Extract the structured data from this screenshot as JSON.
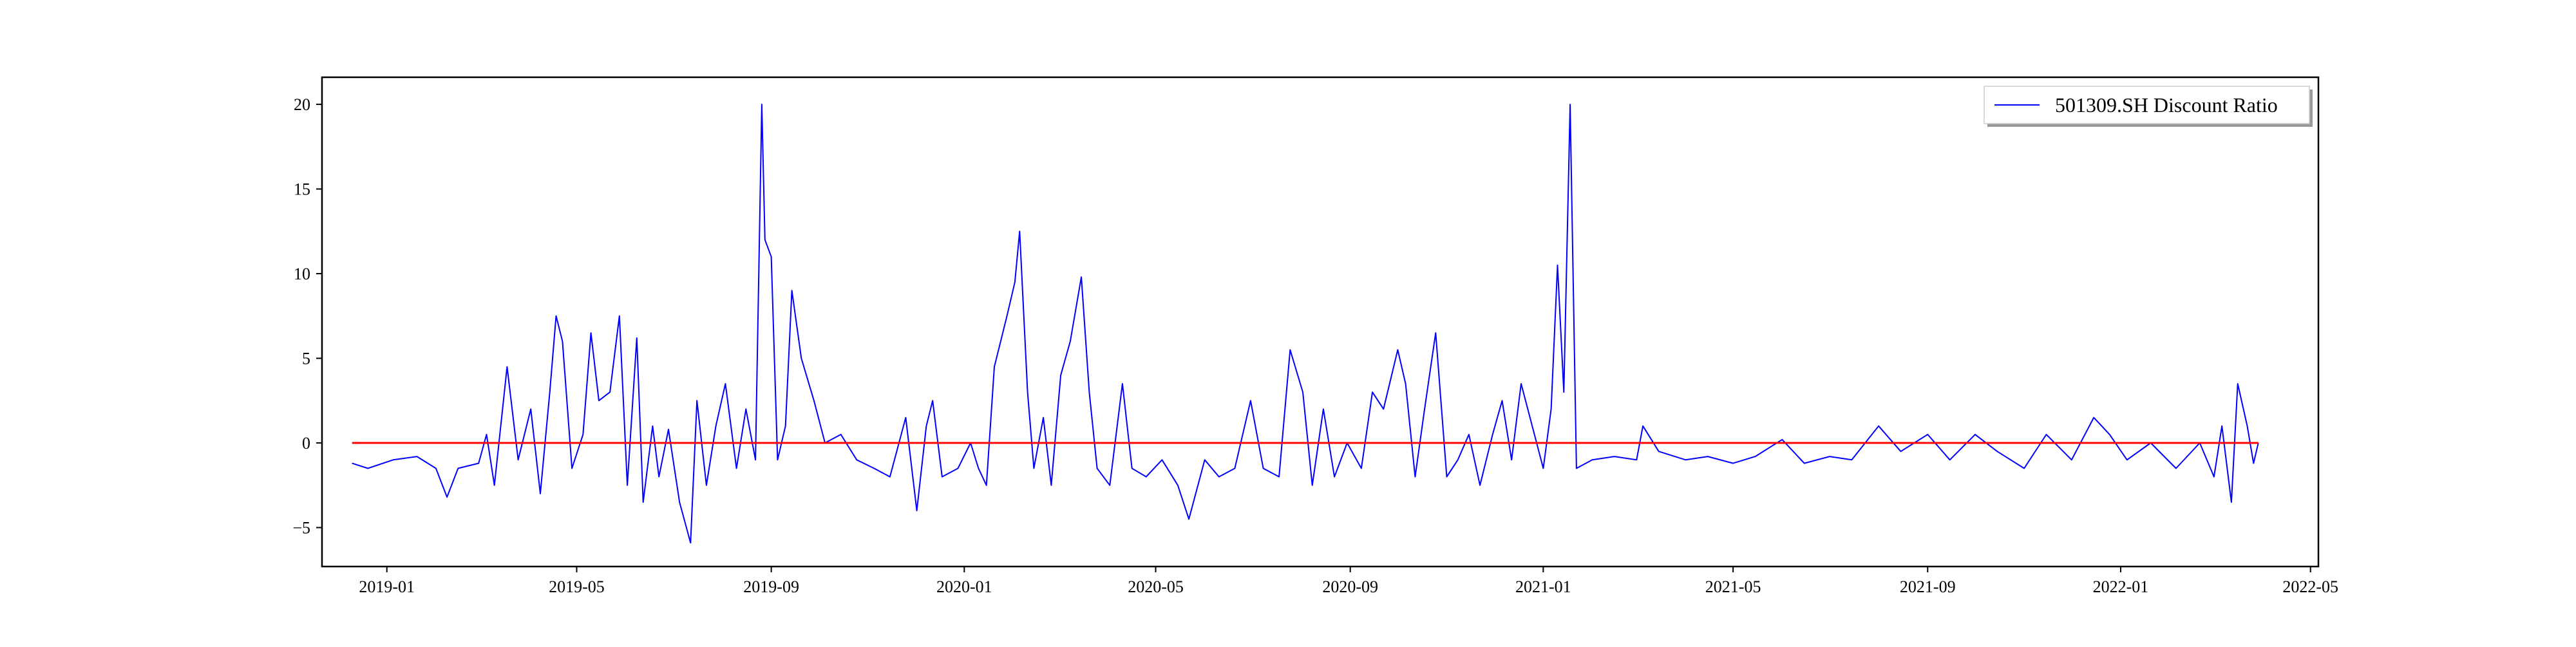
{
  "chart_data": {
    "type": "line",
    "title": "",
    "xlabel": "",
    "ylabel": "",
    "x_range": [
      "2018-11-21",
      "2022-05-06"
    ],
    "ylim": [
      -7.3,
      21.6
    ],
    "x_ticks": [
      "2019-01",
      "2019-05",
      "2019-09",
      "2020-01",
      "2020-05",
      "2020-09",
      "2021-01",
      "2021-05",
      "2021-09",
      "2022-01",
      "2022-05"
    ],
    "y_ticks": [
      "20",
      "15",
      "10",
      "5",
      "0",
      "−5"
    ],
    "y_tick_values": [
      20,
      15,
      10,
      5,
      0,
      -5
    ],
    "grid": false,
    "legend": {
      "placement": "top-right",
      "entries": [
        "501309.SH Discount Ratio"
      ]
    },
    "series": [
      {
        "name": "501309.SH Discount Ratio",
        "color": "#0000ff",
        "points": [
          [
            "2018-12-10",
            -1.2
          ],
          [
            "2018-12-20",
            -1.5
          ],
          [
            "2019-01-05",
            -1.0
          ],
          [
            "2019-01-20",
            -0.8
          ],
          [
            "2019-02-01",
            -1.5
          ],
          [
            "2019-02-08",
            -3.2
          ],
          [
            "2019-02-15",
            -1.5
          ],
          [
            "2019-02-28",
            -1.2
          ],
          [
            "2019-03-05",
            0.5
          ],
          [
            "2019-03-10",
            -2.5
          ],
          [
            "2019-03-18",
            4.5
          ],
          [
            "2019-03-25",
            -1.0
          ],
          [
            "2019-04-02",
            2.0
          ],
          [
            "2019-04-08",
            -3.0
          ],
          [
            "2019-04-14",
            3.0
          ],
          [
            "2019-04-18",
            7.5
          ],
          [
            "2019-04-22",
            6.0
          ],
          [
            "2019-04-28",
            -1.5
          ],
          [
            "2019-05-05",
            0.5
          ],
          [
            "2019-05-10",
            6.5
          ],
          [
            "2019-05-15",
            2.5
          ],
          [
            "2019-05-22",
            3.0
          ],
          [
            "2019-05-28",
            7.5
          ],
          [
            "2019-06-02",
            -2.5
          ],
          [
            "2019-06-08",
            6.2
          ],
          [
            "2019-06-12",
            -3.5
          ],
          [
            "2019-06-18",
            1.0
          ],
          [
            "2019-06-22",
            -2.0
          ],
          [
            "2019-06-28",
            0.8
          ],
          [
            "2019-07-05",
            -3.5
          ],
          [
            "2019-07-12",
            -5.9
          ],
          [
            "2019-07-16",
            2.5
          ],
          [
            "2019-07-22",
            -2.5
          ],
          [
            "2019-07-28",
            1.0
          ],
          [
            "2019-08-03",
            3.5
          ],
          [
            "2019-08-10",
            -1.5
          ],
          [
            "2019-08-16",
            2.0
          ],
          [
            "2019-08-22",
            -1.0
          ],
          [
            "2019-08-26",
            20.0
          ],
          [
            "2019-08-28",
            12.0
          ],
          [
            "2019-09-01",
            11.0
          ],
          [
            "2019-09-05",
            -1.0
          ],
          [
            "2019-09-10",
            1.0
          ],
          [
            "2019-09-14",
            9.0
          ],
          [
            "2019-09-20",
            5.0
          ],
          [
            "2019-09-28",
            2.5
          ],
          [
            "2019-10-05",
            0.0
          ],
          [
            "2019-10-15",
            0.5
          ],
          [
            "2019-10-25",
            -1.0
          ],
          [
            "2019-11-05",
            -1.5
          ],
          [
            "2019-11-15",
            -2.0
          ],
          [
            "2019-11-25",
            1.5
          ],
          [
            "2019-12-02",
            -4.0
          ],
          [
            "2019-12-08",
            1.0
          ],
          [
            "2019-12-12",
            2.5
          ],
          [
            "2019-12-18",
            -2.0
          ],
          [
            "2019-12-28",
            -1.5
          ],
          [
            "2020-01-05",
            0.0
          ],
          [
            "2020-01-10",
            -1.5
          ],
          [
            "2020-01-15",
            -2.5
          ],
          [
            "2020-01-20",
            4.5
          ],
          [
            "2020-01-28",
            7.5
          ],
          [
            "2020-02-02",
            9.5
          ],
          [
            "2020-02-05",
            12.5
          ],
          [
            "2020-02-10",
            3.0
          ],
          [
            "2020-02-14",
            -1.5
          ],
          [
            "2020-02-20",
            1.5
          ],
          [
            "2020-02-25",
            -2.5
          ],
          [
            "2020-03-02",
            4.0
          ],
          [
            "2020-03-08",
            6.0
          ],
          [
            "2020-03-15",
            9.8
          ],
          [
            "2020-03-20",
            3.0
          ],
          [
            "2020-03-25",
            -1.5
          ],
          [
            "2020-04-02",
            -2.5
          ],
          [
            "2020-04-10",
            3.5
          ],
          [
            "2020-04-16",
            -1.5
          ],
          [
            "2020-04-25",
            -2.0
          ],
          [
            "2020-05-05",
            -1.0
          ],
          [
            "2020-05-15",
            -2.5
          ],
          [
            "2020-05-22",
            -4.5
          ],
          [
            "2020-06-01",
            -1.0
          ],
          [
            "2020-06-10",
            -2.0
          ],
          [
            "2020-06-20",
            -1.5
          ],
          [
            "2020-06-30",
            2.5
          ],
          [
            "2020-07-08",
            -1.5
          ],
          [
            "2020-07-18",
            -2.0
          ],
          [
            "2020-07-25",
            5.5
          ],
          [
            "2020-08-02",
            3.0
          ],
          [
            "2020-08-08",
            -2.5
          ],
          [
            "2020-08-15",
            2.0
          ],
          [
            "2020-08-22",
            -2.0
          ],
          [
            "2020-08-30",
            0.0
          ],
          [
            "2020-09-08",
            -1.5
          ],
          [
            "2020-09-15",
            3.0
          ],
          [
            "2020-09-22",
            2.0
          ],
          [
            "2020-10-01",
            5.5
          ],
          [
            "2020-10-06",
            3.5
          ],
          [
            "2020-10-12",
            -2.0
          ],
          [
            "2020-10-18",
            2.0
          ],
          [
            "2020-10-25",
            6.5
          ],
          [
            "2020-11-01",
            -2.0
          ],
          [
            "2020-11-08",
            -1.0
          ],
          [
            "2020-11-15",
            0.5
          ],
          [
            "2020-11-22",
            -2.5
          ],
          [
            "2020-11-30",
            0.5
          ],
          [
            "2020-12-06",
            2.5
          ],
          [
            "2020-12-12",
            -1.0
          ],
          [
            "2020-12-18",
            3.5
          ],
          [
            "2020-12-25",
            1.0
          ],
          [
            "2021-01-01",
            -1.5
          ],
          [
            "2021-01-06",
            2.0
          ],
          [
            "2021-01-10",
            10.5
          ],
          [
            "2021-01-14",
            3.0
          ],
          [
            "2021-01-18",
            20.0
          ],
          [
            "2021-01-22",
            -1.5
          ],
          [
            "2021-02-01",
            -1.0
          ],
          [
            "2021-02-15",
            -0.8
          ],
          [
            "2021-03-01",
            -1.0
          ],
          [
            "2021-03-05",
            1.0
          ],
          [
            "2021-03-15",
            -0.5
          ],
          [
            "2021-04-01",
            -1.0
          ],
          [
            "2021-04-15",
            -0.8
          ],
          [
            "2021-05-01",
            -1.2
          ],
          [
            "2021-05-15",
            -0.8
          ],
          [
            "2021-06-01",
            0.2
          ],
          [
            "2021-06-15",
            -1.2
          ],
          [
            "2021-07-01",
            -0.8
          ],
          [
            "2021-07-15",
            -1.0
          ],
          [
            "2021-08-01",
            1.0
          ],
          [
            "2021-08-15",
            -0.5
          ],
          [
            "2021-09-01",
            0.5
          ],
          [
            "2021-09-15",
            -1.0
          ],
          [
            "2021-10-01",
            0.5
          ],
          [
            "2021-10-15",
            -0.5
          ],
          [
            "2021-11-01",
            -1.5
          ],
          [
            "2021-11-15",
            0.5
          ],
          [
            "2021-12-01",
            -1.0
          ],
          [
            "2021-12-15",
            1.5
          ],
          [
            "2021-12-25",
            0.5
          ],
          [
            "2022-01-05",
            -1.0
          ],
          [
            "2022-01-20",
            0.0
          ],
          [
            "2022-02-05",
            -1.5
          ],
          [
            "2022-02-20",
            0.0
          ],
          [
            "2022-03-01",
            -2.0
          ],
          [
            "2022-03-06",
            1.0
          ],
          [
            "2022-03-12",
            -3.5
          ],
          [
            "2022-03-16",
            3.5
          ],
          [
            "2022-03-22",
            1.0
          ],
          [
            "2022-03-26",
            -1.2
          ],
          [
            "2022-03-29",
            0.0
          ]
        ]
      },
      {
        "color": "#ff0000",
        "points": [
          [
            "2018-12-10",
            0
          ],
          [
            "2022-03-29",
            0
          ]
        ]
      }
    ]
  }
}
